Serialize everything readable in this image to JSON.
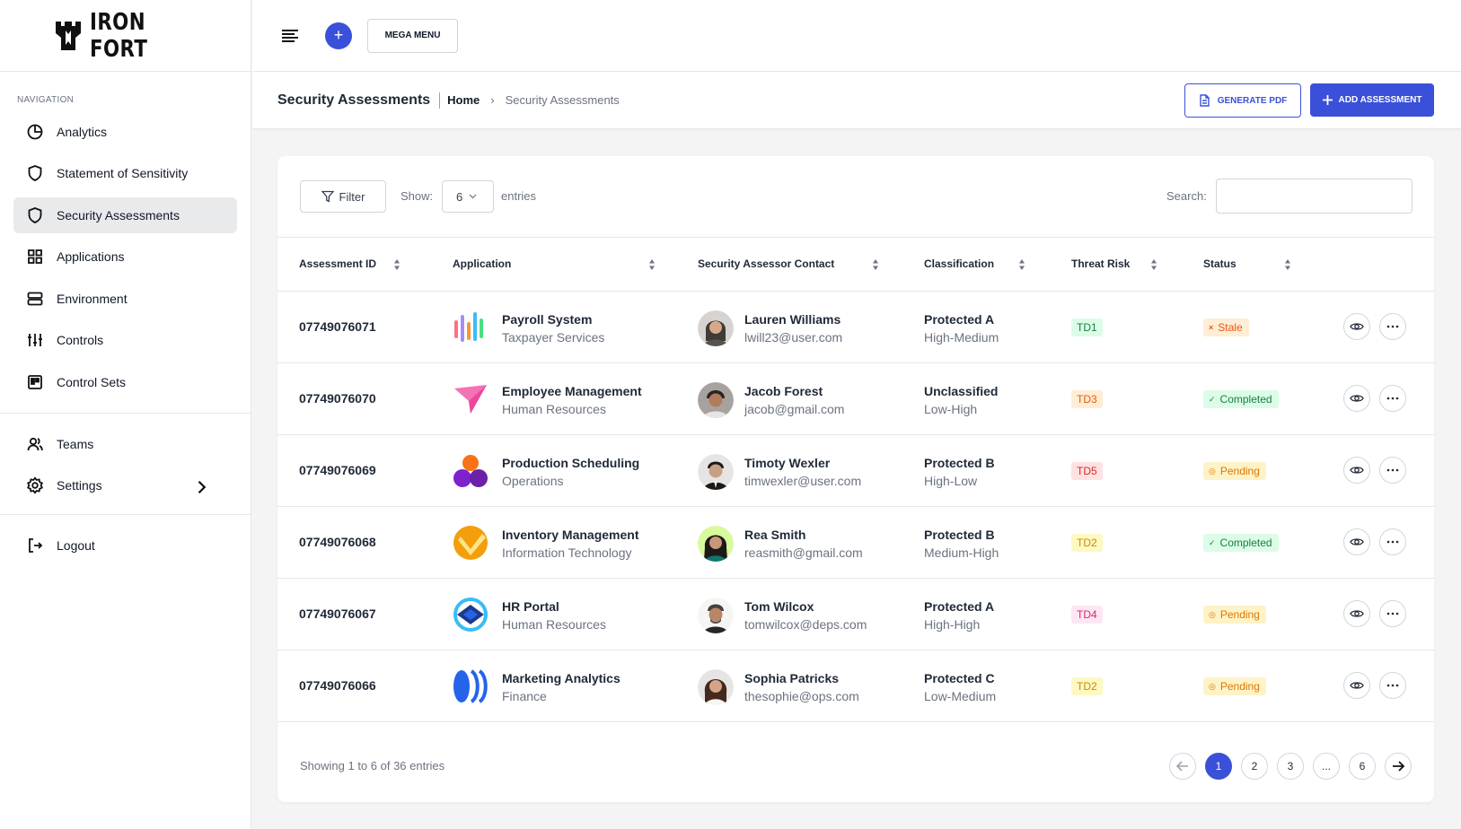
{
  "brand": {
    "name": "IRON FORT"
  },
  "sidebar": {
    "heading": "NAVIGATION",
    "items": [
      {
        "label": "Analytics",
        "icon": "pie-chart-icon"
      },
      {
        "label": "Statement of Sensitivity",
        "icon": "shield-icon"
      },
      {
        "label": "Security Assessments",
        "icon": "shield-icon",
        "active": true
      },
      {
        "label": "Applications",
        "icon": "grid-icon"
      },
      {
        "label": "Environment",
        "icon": "server-icon"
      },
      {
        "label": "Controls",
        "icon": "sliders-icon"
      },
      {
        "label": "Control Sets",
        "icon": "board-icon"
      }
    ],
    "secondary": [
      {
        "label": "Teams",
        "icon": "users-icon"
      },
      {
        "label": "Settings",
        "icon": "gear-icon"
      }
    ],
    "logout": "Logout"
  },
  "topbar": {
    "mega_menu": "MEGA MENU",
    "plus": "+"
  },
  "header": {
    "title": "Security Assessments",
    "breadcrumb_home": "Home",
    "breadcrumb_sep": "›",
    "breadcrumb_current": "Security Assessments",
    "generate_pdf": "GENERATE PDF",
    "add_assessment": "ADD ASSESSMENT"
  },
  "toolbar": {
    "filter": "Filter",
    "show_label": "Show:",
    "show_value": "6",
    "entries_label": "entries",
    "search_label": "Search:",
    "search_value": ""
  },
  "table": {
    "columns": [
      "Assessment ID",
      "Application",
      "Security Assessor Contact",
      "Classification",
      "Threat Risk",
      "Status"
    ],
    "rows": [
      {
        "id": "07749076071",
        "app": "Payroll System",
        "dept": "Taxpayer Services",
        "contact": "Lauren Williams",
        "email": "lwill23@user.com",
        "class": "Protected A",
        "level": "High-Medium",
        "risk": "TD1",
        "status": "Stale"
      },
      {
        "id": "07749076070",
        "app": "Employee Management",
        "dept": "Human Resources",
        "contact": "Jacob Forest",
        "email": "jacob@gmail.com",
        "class": "Unclassified",
        "level": "Low-High",
        "risk": "TD3",
        "status": "Completed"
      },
      {
        "id": "07749076069",
        "app": "Production Scheduling",
        "dept": "Operations",
        "contact": "Timoty Wexler",
        "email": "timwexler@user.com",
        "class": "Protected B",
        "level": "High-Low",
        "risk": "TD5",
        "status": "Pending"
      },
      {
        "id": "07749076068",
        "app": "Inventory Management",
        "dept": "Information Technology",
        "contact": "Rea Smith",
        "email": "reasmith@gmail.com",
        "class": "Protected B",
        "level": "Medium-High",
        "risk": "TD2",
        "status": "Completed"
      },
      {
        "id": "07749076067",
        "app": "HR Portal",
        "dept": "Human Resources",
        "contact": "Tom Wilcox",
        "email": "tomwilcox@deps.com",
        "class": "Protected A",
        "level": "High-High",
        "risk": "TD4",
        "status": "Pending"
      },
      {
        "id": "07749076066",
        "app": "Marketing Analytics",
        "dept": "Finance",
        "contact": "Sophia Patricks",
        "email": "thesophie@ops.com",
        "class": "Protected C",
        "level": "Low-Medium",
        "risk": "TD2",
        "status": "Pending"
      }
    ]
  },
  "status_marks": {
    "Stale": "×",
    "Completed": "✓",
    "Pending": "◎"
  },
  "footer": {
    "showing": "Showing 1 to 6 of 36 entries",
    "pages": [
      "1",
      "2",
      "3",
      "...",
      "6"
    ]
  },
  "colors": {
    "accent": "#3b50d8",
    "risk": {
      "TD1": {
        "bg": "#dcfce7",
        "fg": "#15803d"
      },
      "TD2": {
        "bg": "#fef9c3",
        "fg": "#ca8a04"
      },
      "TD3": {
        "bg": "#ffedd5",
        "fg": "#ea580c"
      },
      "TD4": {
        "bg": "#fce7f3",
        "fg": "#db2777"
      },
      "TD5": {
        "bg": "#fee2e2",
        "fg": "#dc2626"
      }
    },
    "status": {
      "Stale": {
        "bg": "#ffedd5",
        "fg": "#ea580c"
      },
      "Completed": {
        "bg": "#dcfce7",
        "fg": "#15803d"
      },
      "Pending": {
        "bg": "#fef3c7",
        "fg": "#d97706"
      }
    }
  }
}
